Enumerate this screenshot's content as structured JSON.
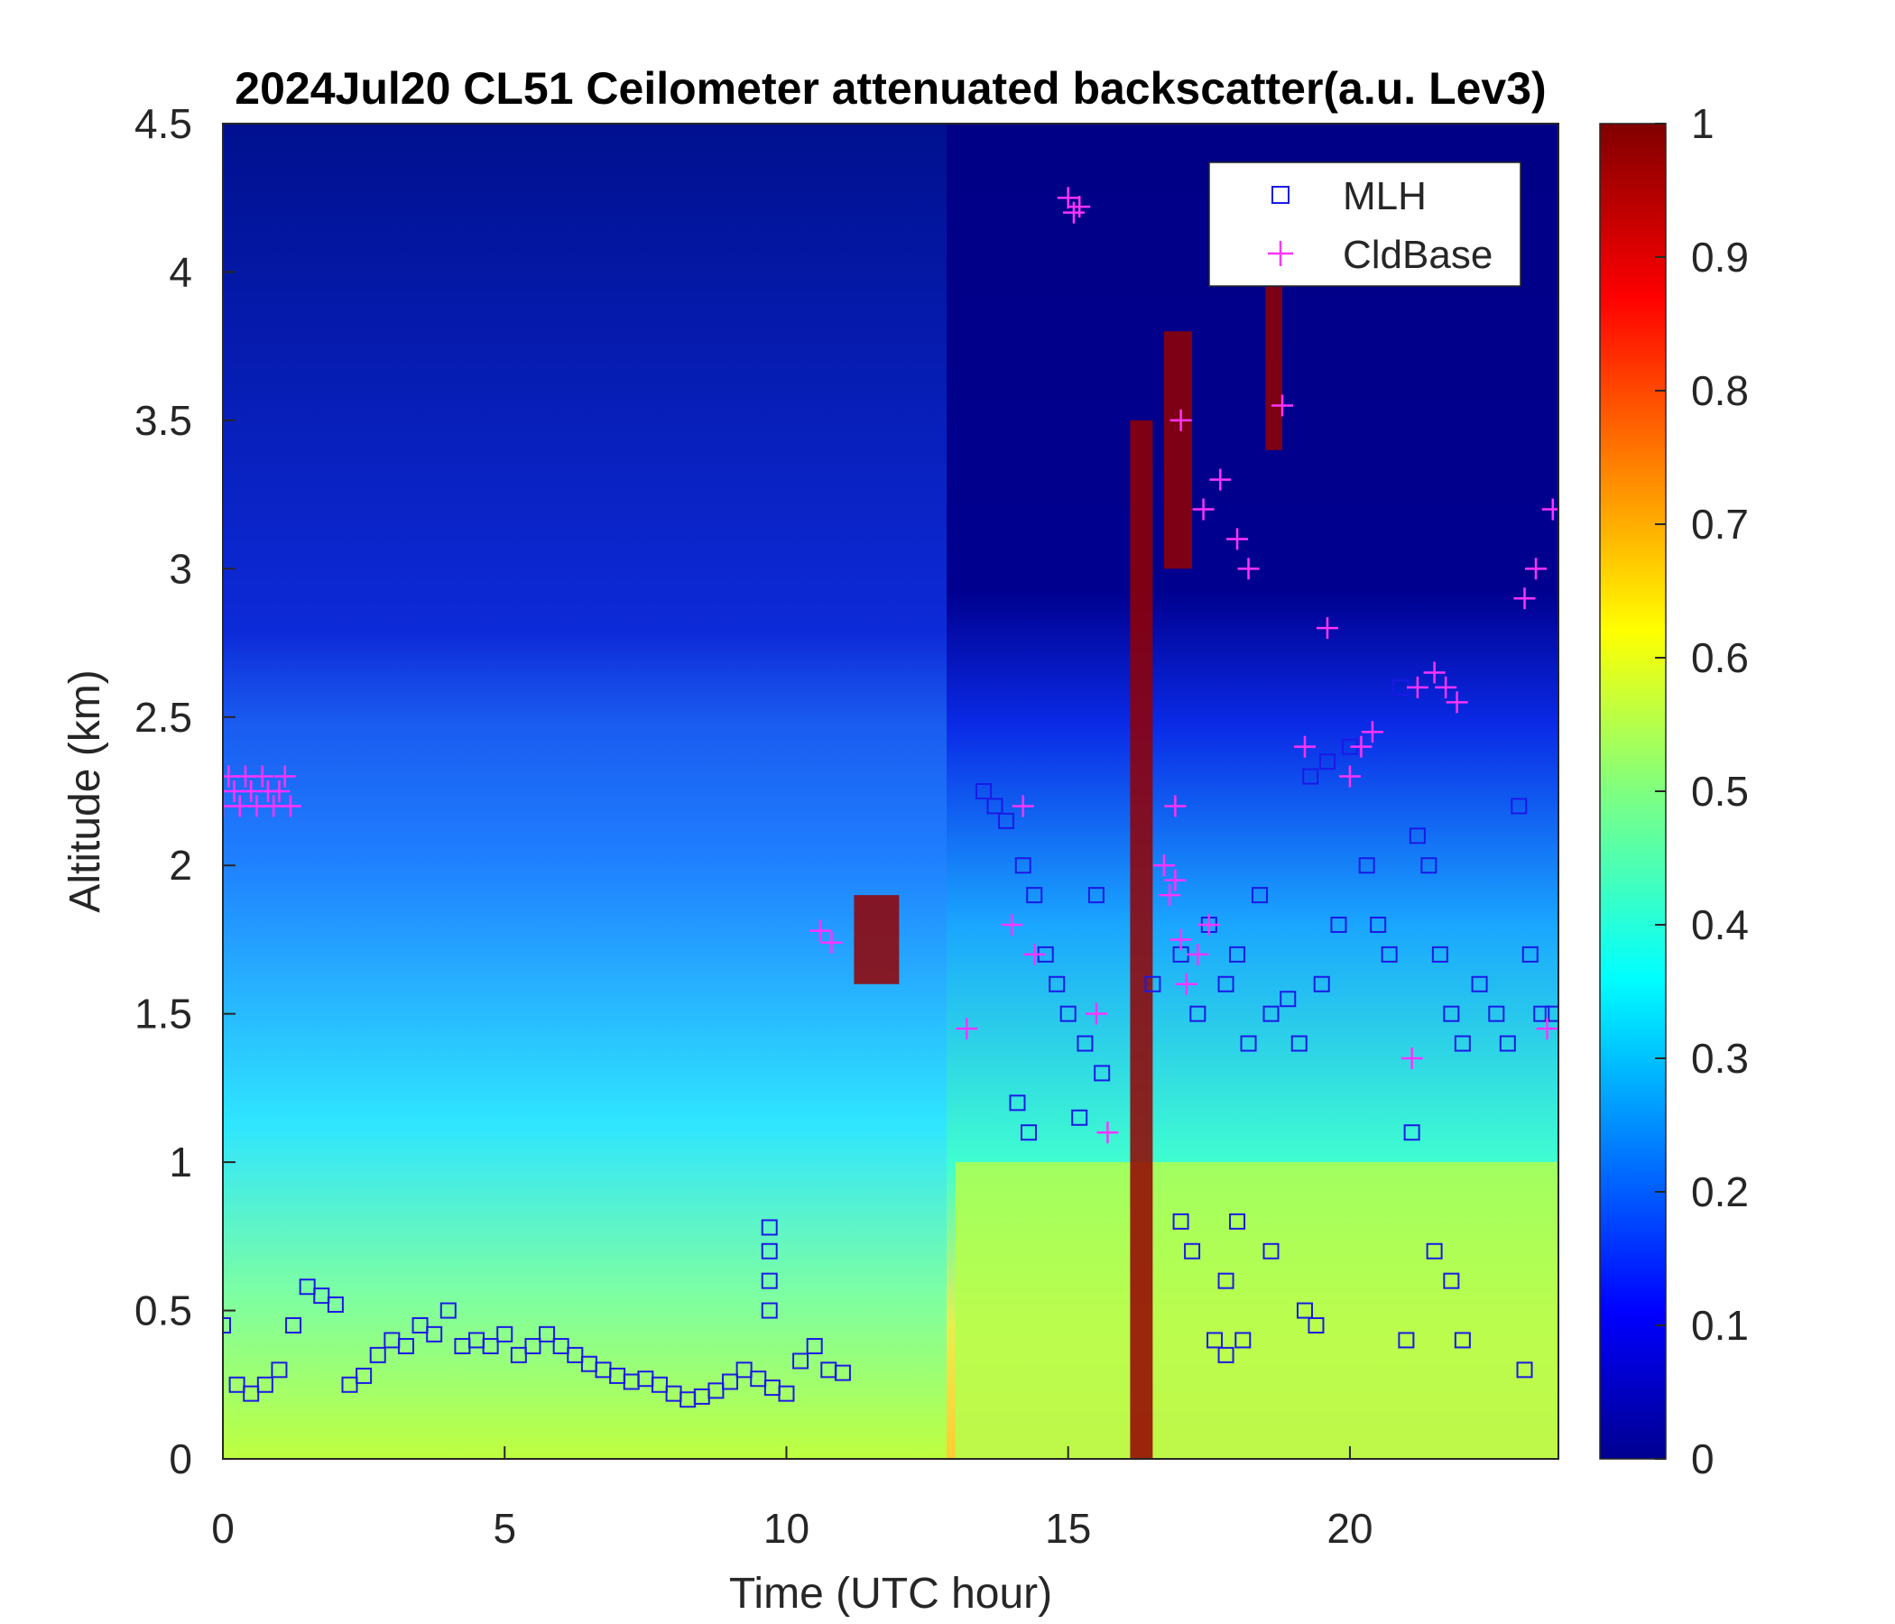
{
  "chart_data": {
    "type": "heatmap",
    "title": "2024Jul20 CL51 Ceilometer attenuated backscatter(a.u. Lev3)",
    "xlabel": "Time (UTC hour)",
    "ylabel": "Altitude (km)",
    "xlim": [
      0,
      23.7
    ],
    "ylim": [
      0,
      4.5
    ],
    "xticks": [
      0,
      5,
      10,
      15,
      20
    ],
    "yticks": [
      0,
      0.5,
      1,
      1.5,
      2,
      2.5,
      3,
      3.5,
      4,
      4.5
    ],
    "colorbar": {
      "min": 0,
      "max": 1,
      "ticks": [
        0,
        0.1,
        0.2,
        0.3,
        0.4,
        0.5,
        0.6,
        0.7,
        0.8,
        0.9,
        1
      ],
      "colormap": "jet"
    },
    "grid": false,
    "legend_position": "top-right",
    "legend": [
      {
        "name": "MLH",
        "marker": "square",
        "color": "#1a1ae6"
      },
      {
        "name": "CldBase",
        "marker": "plus",
        "color": "#ff33ff"
      }
    ],
    "series": [
      {
        "name": "MLH",
        "x": [
          0.0,
          0.25,
          0.5,
          0.75,
          1.0,
          1.25,
          1.5,
          1.75,
          2.0,
          2.25,
          2.5,
          2.75,
          3.0,
          3.25,
          3.5,
          3.75,
          4.0,
          4.25,
          4.5,
          4.75,
          5.0,
          5.25,
          5.5,
          5.75,
          6.0,
          6.25,
          6.5,
          6.75,
          7.0,
          7.25,
          7.5,
          7.75,
          8.0,
          8.25,
          8.5,
          8.75,
          9.0,
          9.25,
          9.5,
          9.75,
          10.0,
          10.25,
          10.5,
          10.75,
          11.0,
          9.7,
          9.7,
          9.7,
          9.7,
          13.5,
          13.7,
          13.9,
          14.2,
          14.4,
          14.6,
          14.8,
          15.0,
          15.3,
          15.6,
          14.1,
          14.3,
          15.2,
          15.5,
          16.5,
          17.0,
          17.3,
          17.5,
          17.8,
          18.0,
          18.2,
          18.4,
          18.6,
          18.9,
          19.1,
          19.3,
          19.5,
          19.6,
          19.8,
          20.0,
          20.3,
          20.5,
          20.7,
          20.9,
          21.2,
          21.4,
          21.6,
          21.8,
          22.0,
          22.3,
          22.6,
          22.8,
          23.0,
          23.2,
          23.4,
          23.6,
          17.0,
          17.2,
          17.6,
          17.8,
          18.0,
          18.6,
          19.2,
          21.0,
          21.5,
          21.8,
          22.0,
          23.1,
          19.4,
          17.8,
          18.1,
          21.1
        ],
        "y": [
          0.45,
          0.25,
          0.22,
          0.25,
          0.3,
          0.45,
          0.58,
          0.55,
          0.52,
          0.25,
          0.28,
          0.35,
          0.4,
          0.38,
          0.45,
          0.42,
          0.5,
          0.38,
          0.4,
          0.38,
          0.42,
          0.35,
          0.38,
          0.42,
          0.38,
          0.35,
          0.32,
          0.3,
          0.28,
          0.26,
          0.27,
          0.25,
          0.22,
          0.2,
          0.21,
          0.23,
          0.26,
          0.3,
          0.27,
          0.24,
          0.22,
          0.33,
          0.38,
          0.3,
          0.29,
          0.5,
          0.6,
          0.7,
          0.78,
          2.25,
          2.2,
          2.15,
          2.0,
          1.9,
          1.7,
          1.6,
          1.5,
          1.4,
          1.3,
          1.2,
          1.1,
          1.15,
          1.9,
          1.6,
          1.7,
          1.5,
          1.8,
          1.6,
          1.7,
          1.4,
          1.9,
          1.5,
          1.55,
          1.4,
          2.3,
          1.6,
          2.35,
          1.8,
          2.4,
          2.0,
          1.8,
          1.7,
          2.6,
          2.1,
          2.0,
          1.7,
          1.5,
          1.4,
          1.6,
          1.5,
          1.4,
          2.2,
          1.7,
          1.5,
          1.5,
          0.8,
          0.7,
          0.4,
          0.6,
          0.8,
          0.7,
          0.5,
          0.4,
          0.7,
          0.6,
          0.4,
          0.3,
          0.45,
          0.35,
          0.4,
          1.1
        ],
        "labels_visible": false
      },
      {
        "name": "CldBase",
        "x": [
          0.0,
          0.1,
          0.2,
          0.3,
          0.4,
          0.5,
          0.6,
          0.7,
          0.8,
          0.9,
          1.0,
          1.1,
          1.2,
          10.6,
          10.8,
          13.2,
          14.0,
          14.2,
          14.4,
          15.0,
          15.1,
          15.2,
          15.5,
          15.7,
          16.8,
          16.9,
          17.0,
          17.1,
          17.3,
          17.5,
          17.7,
          18.0,
          18.2,
          19.2,
          19.6,
          20.0,
          20.2,
          20.4,
          21.2,
          21.5,
          21.7,
          21.9,
          23.1,
          23.3,
          23.6,
          17.0,
          17.4,
          16.7,
          16.9,
          21.1,
          23.5,
          18.8
        ],
        "y": [
          2.2,
          2.3,
          2.25,
          2.2,
          2.3,
          2.25,
          2.2,
          2.3,
          2.25,
          2.2,
          2.25,
          2.3,
          2.2,
          1.78,
          1.74,
          1.45,
          1.8,
          2.2,
          1.7,
          4.25,
          4.2,
          4.22,
          1.5,
          1.1,
          1.9,
          2.2,
          1.75,
          1.6,
          1.7,
          1.8,
          3.3,
          3.1,
          3.0,
          2.4,
          2.8,
          2.3,
          2.4,
          2.45,
          2.6,
          2.65,
          2.6,
          2.55,
          2.9,
          3.0,
          3.2,
          3.5,
          3.2,
          2.0,
          1.95,
          1.35,
          1.45,
          3.55
        ],
        "labels_visible": false
      }
    ],
    "heatmap_regions": [
      {
        "x": [
          0,
          13
        ],
        "y": [
          2.0,
          4.5
        ],
        "value": 0.03
      },
      {
        "x": [
          0,
          12
        ],
        "y": [
          0.8,
          2.0
        ],
        "value": 0.15
      },
      {
        "x": [
          0,
          13
        ],
        "y": [
          0,
          0.8
        ],
        "value": 0.35
      },
      {
        "x": [
          11.2,
          12.0
        ],
        "y": [
          1.6,
          1.9
        ],
        "value": 0.98
      },
      {
        "x": [
          13,
          23.7
        ],
        "y": [
          0,
          1.0
        ],
        "value": 0.55
      },
      {
        "x": [
          16.1,
          16.5
        ],
        "y": [
          0,
          3.5
        ],
        "value": 0.98
      },
      {
        "x": [
          16.7,
          17.2
        ],
        "y": [
          3.0,
          3.8
        ],
        "value": 0.98
      },
      {
        "x": [
          18.5,
          18.8
        ],
        "y": [
          3.4,
          3.95
        ],
        "value": 0.98
      }
    ]
  }
}
